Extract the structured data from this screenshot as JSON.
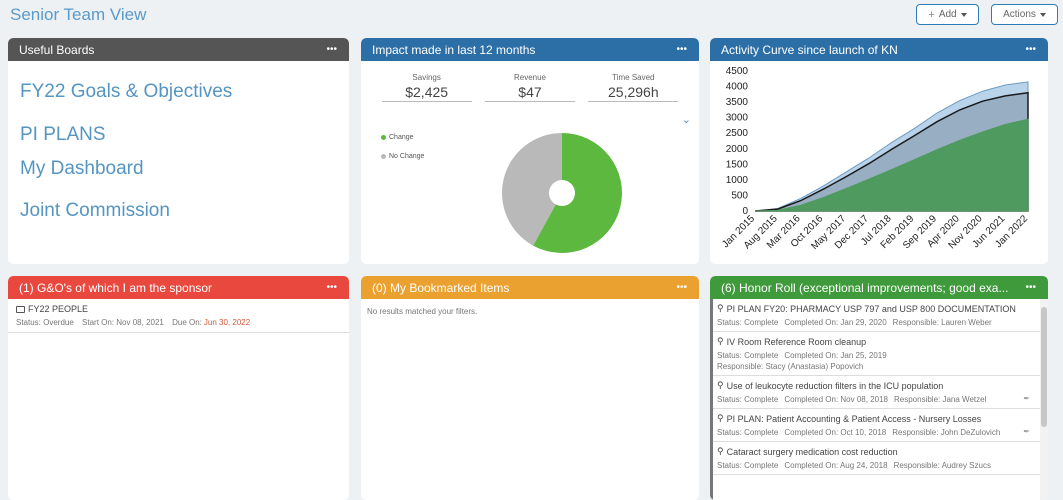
{
  "page": {
    "title": "Senior Team View"
  },
  "toolbar": {
    "add_label": "Add",
    "actions_label": "Actions"
  },
  "useful_boards": {
    "title": "Useful Boards",
    "links": [
      "FY22 Goals & Objectives",
      "PI PLANS",
      "My Dashboard",
      "Joint Commission"
    ]
  },
  "impact": {
    "title": "Impact made in last 12 months",
    "stats": [
      {
        "label": "Savings",
        "value": "$2,425"
      },
      {
        "label": "Revenue",
        "value": "$47"
      },
      {
        "label": "Time Saved",
        "value": "25,296h"
      }
    ],
    "legend": [
      {
        "label": "Change",
        "color": "#5cb83e"
      },
      {
        "label": "No Change",
        "color": "#b9b9b9"
      }
    ],
    "donut": {
      "change_fraction": 0.58,
      "no_change_fraction": 0.42
    }
  },
  "activity": {
    "title": "Activity Curve since launch of KN",
    "chart_data": {
      "type": "area",
      "x": [
        "Jan 2015",
        "Aug 2015",
        "Mar 2016",
        "Oct 2016",
        "May 2017",
        "Dec 2017",
        "Jul 2018",
        "Feb 2019",
        "Sep 2019",
        "Apr 2020",
        "Nov 2020",
        "Jun 2021",
        "Jan 2022"
      ],
      "ylim": [
        0,
        4500
      ],
      "yticks": [
        "4500",
        "4000",
        "3500",
        "3000",
        "2500",
        "2000",
        "1500",
        "1000",
        "500",
        "0"
      ],
      "series": [
        {
          "color": "#b8d3ea",
          "values": [
            0,
            80,
            400,
            800,
            1250,
            1700,
            2200,
            2650,
            3150,
            3550,
            3850,
            4050,
            4150
          ]
        },
        {
          "color": "#1a1a1a",
          "values": [
            0,
            60,
            330,
            700,
            1100,
            1520,
            1980,
            2420,
            2870,
            3250,
            3530,
            3700,
            3800
          ]
        },
        {
          "color": "#4f9a5e",
          "values": [
            0,
            20,
            180,
            430,
            720,
            1020,
            1330,
            1650,
            1970,
            2270,
            2540,
            2780,
            2950
          ]
        }
      ]
    }
  },
  "sponsor": {
    "title": "(1) G&O's of which I am the sponsor",
    "item": {
      "name": "FY22 PEOPLE",
      "status": "Status: Overdue",
      "start": "Start On: Nov 08, 2021",
      "due_label": "Due On:",
      "due_value": "Jun 30, 2022"
    }
  },
  "bookmarks": {
    "title": "(0) My Bookmarked Items",
    "empty_text": "No results matched your filters."
  },
  "honor": {
    "title": "(6) Honor Roll (exceptional improvements; good exa...",
    "items": [
      {
        "title": "PI PLAN FY20: PHARMACY USP 797 and USP 800 DOCUMENTATION",
        "status": "Status: Complete",
        "completed": "Completed On: Jan 29, 2020",
        "responsible": "Responsible: Lauren Weber"
      },
      {
        "title": "IV Room Reference Room cleanup",
        "status": "Status: Complete",
        "completed": "Completed On: Jan 25, 2019",
        "responsible": "Responsible: Stacy (Anastasia) Popovich"
      },
      {
        "title": "Use of leukocyte reduction filters in the ICU population",
        "status": "Status: Complete",
        "completed": "Completed On: Nov 08, 2018",
        "responsible": "Responsible: Jana Wetzel"
      },
      {
        "title": "PI PLAN: Patient Accounting & Patient Access - Nursery Losses",
        "status": "Status: Complete",
        "completed": "Completed On: Oct 10, 2018",
        "responsible": "Responsible: John DeZulovich"
      },
      {
        "title": "Cataract surgery medication cost reduction",
        "status": "Status: Complete",
        "completed": "Completed On: Aug 24, 2018",
        "responsible": "Responsible: Audrey Szucs"
      }
    ]
  }
}
